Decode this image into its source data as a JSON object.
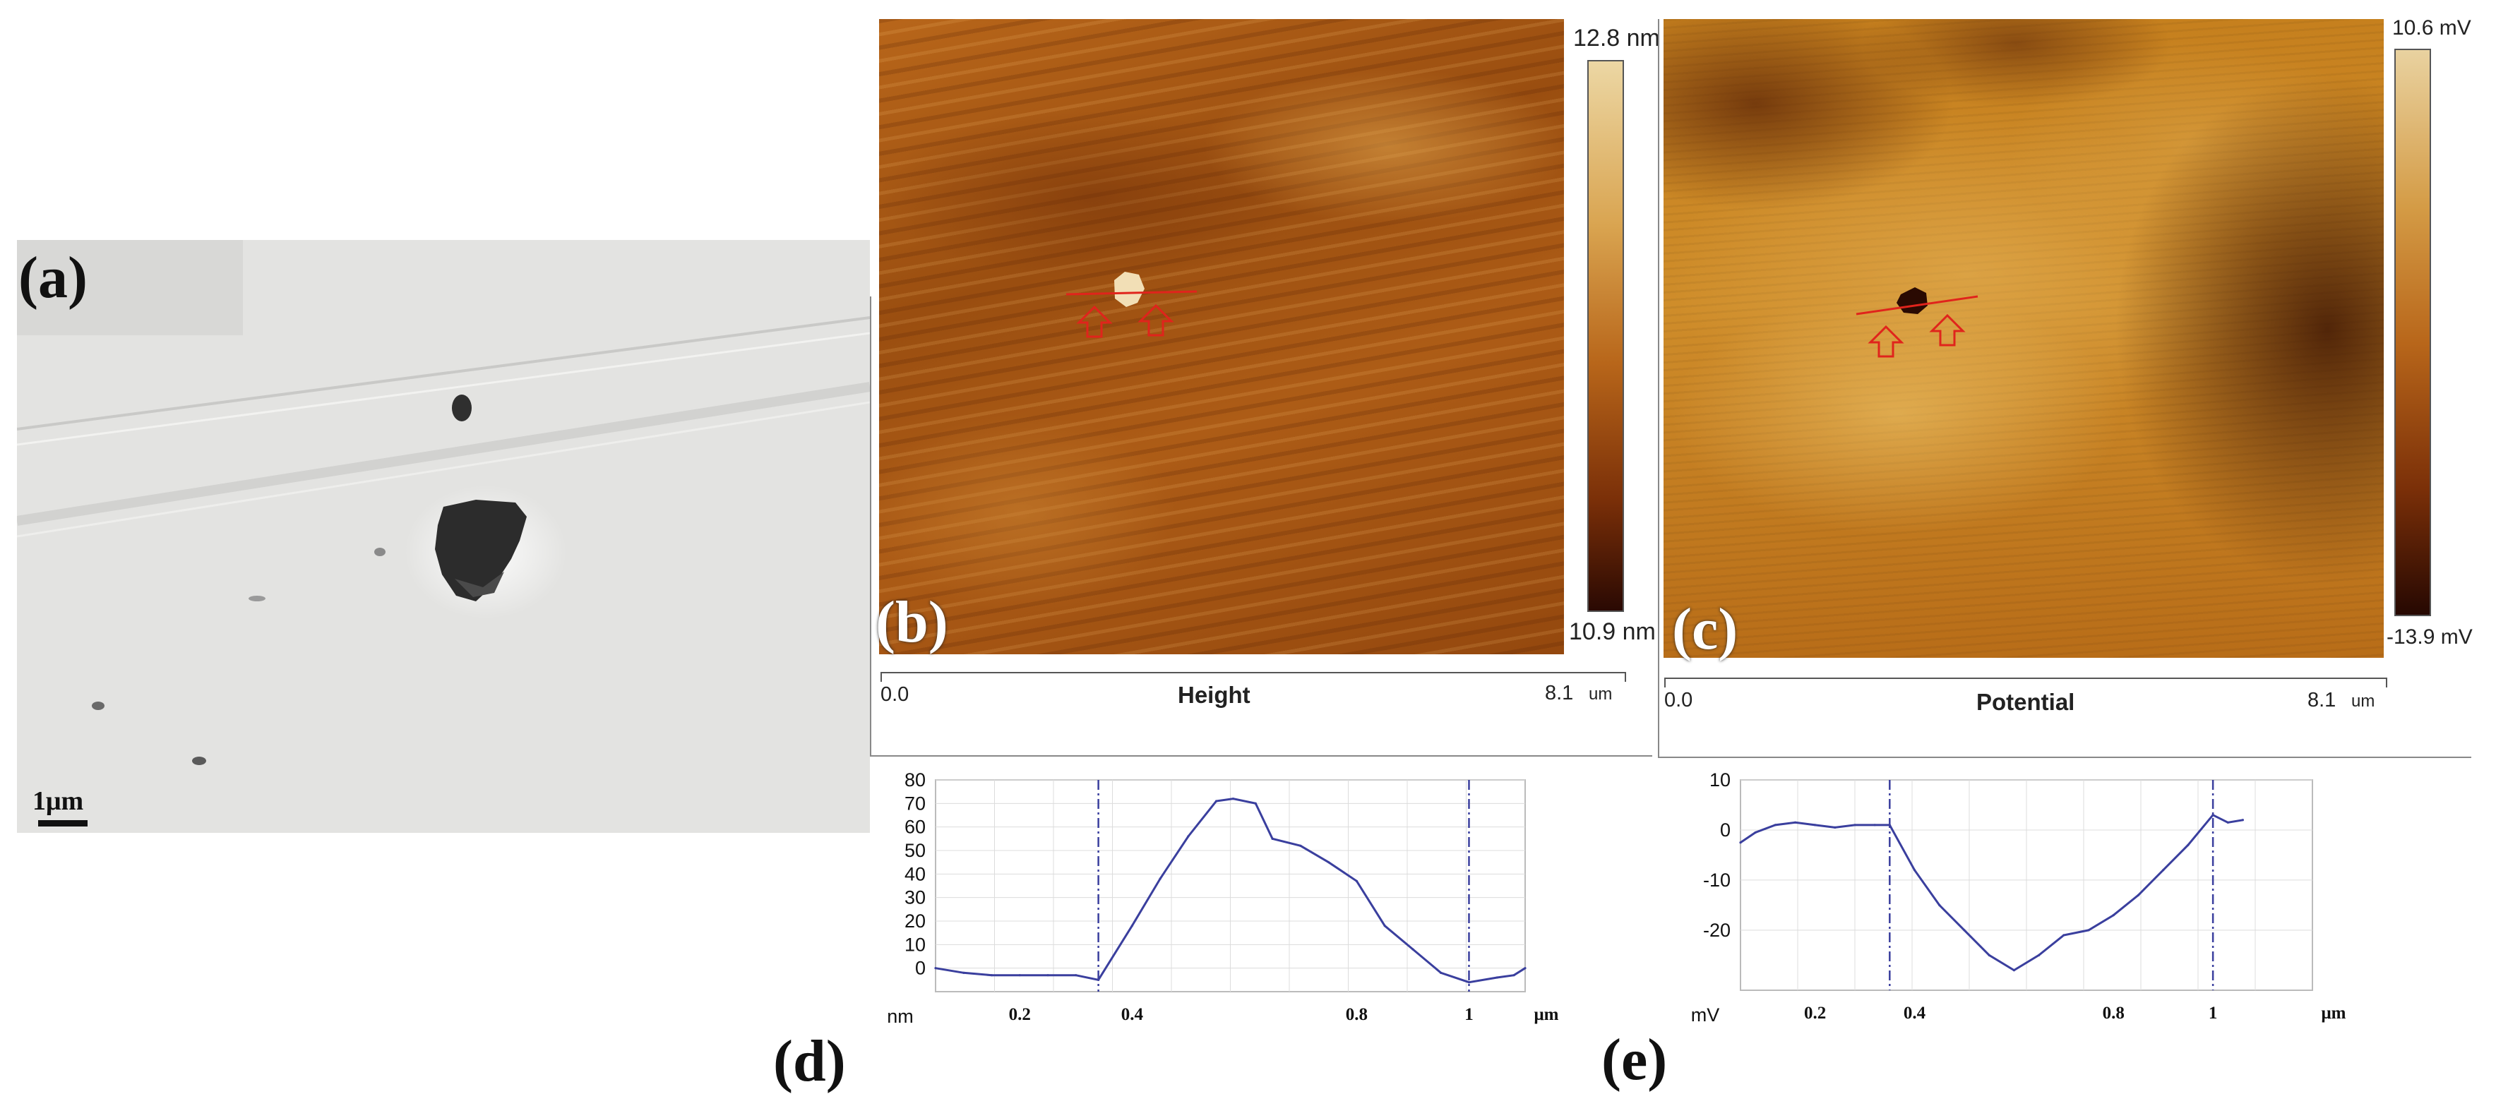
{
  "panels": {
    "a": {
      "label": "(a)",
      "scale_bar": "1μm"
    },
    "b": {
      "label": "(b)",
      "colorbar_max": "12.8 nm",
      "colorbar_min": "10.9 nm",
      "axis_start": "0.0",
      "axis_title": "Height",
      "axis_end": "8.1",
      "axis_unit": "um"
    },
    "c": {
      "label": "(c)",
      "colorbar_max": "10.6 mV",
      "colorbar_min": "-13.9 mV",
      "axis_start": "0.0",
      "axis_title": "Potential",
      "axis_end": "8.1",
      "axis_unit": "um"
    },
    "d": {
      "label": "(d)"
    },
    "e": {
      "label": "(e)"
    }
  },
  "colors": {
    "profile_line": "#3a3f9e",
    "marker_red": "#e0241c",
    "afm_dark": "#3a1204",
    "afm_mid": "#a85a14",
    "afm_light": "#e8c47a",
    "grid": "#dcdcdc"
  },
  "chart_data": [
    {
      "id": "d",
      "type": "line",
      "title": "",
      "xlabel": "μm",
      "ylabel": "nm",
      "xlim": [
        0.05,
        1.1
      ],
      "ylim": [
        -10,
        80
      ],
      "xticks": [
        0.2,
        0.4,
        0.8,
        1
      ],
      "yticks": [
        0,
        10,
        20,
        30,
        40,
        50,
        60,
        70,
        80
      ],
      "markers_x": [
        0.34,
        1.0
      ],
      "x": [
        0.05,
        0.1,
        0.15,
        0.2,
        0.25,
        0.3,
        0.34,
        0.4,
        0.45,
        0.5,
        0.55,
        0.58,
        0.62,
        0.65,
        0.7,
        0.75,
        0.8,
        0.85,
        0.9,
        0.95,
        1.0,
        1.05,
        1.08,
        1.1
      ],
      "y": [
        0,
        -2,
        -3,
        -3,
        -3,
        -3,
        -5,
        18,
        38,
        56,
        71,
        72,
        70,
        55,
        52,
        45,
        37,
        18,
        8,
        -2,
        -6,
        -4,
        -3,
        0
      ]
    },
    {
      "id": "e",
      "type": "line",
      "title": "",
      "xlabel": "μm",
      "ylabel": "mV",
      "xlim": [
        0.05,
        1.2
      ],
      "ylim": [
        -32,
        10
      ],
      "xticks": [
        0.2,
        0.4,
        0.8,
        1
      ],
      "yticks": [
        10,
        0,
        -10,
        -20
      ],
      "markers_x": [
        0.35,
        1.0
      ],
      "x": [
        0.05,
        0.08,
        0.12,
        0.16,
        0.2,
        0.24,
        0.28,
        0.32,
        0.35,
        0.4,
        0.45,
        0.5,
        0.55,
        0.6,
        0.65,
        0.7,
        0.75,
        0.8,
        0.85,
        0.9,
        0.95,
        1.0,
        1.03,
        1.06
      ],
      "y": [
        -2.5,
        -0.5,
        1,
        1.5,
        1,
        0.5,
        1,
        1,
        1,
        -8,
        -15,
        -20,
        -25,
        -28,
        -25,
        -21,
        -20,
        -17,
        -13,
        -8,
        -3,
        3,
        1.5,
        2
      ]
    }
  ]
}
